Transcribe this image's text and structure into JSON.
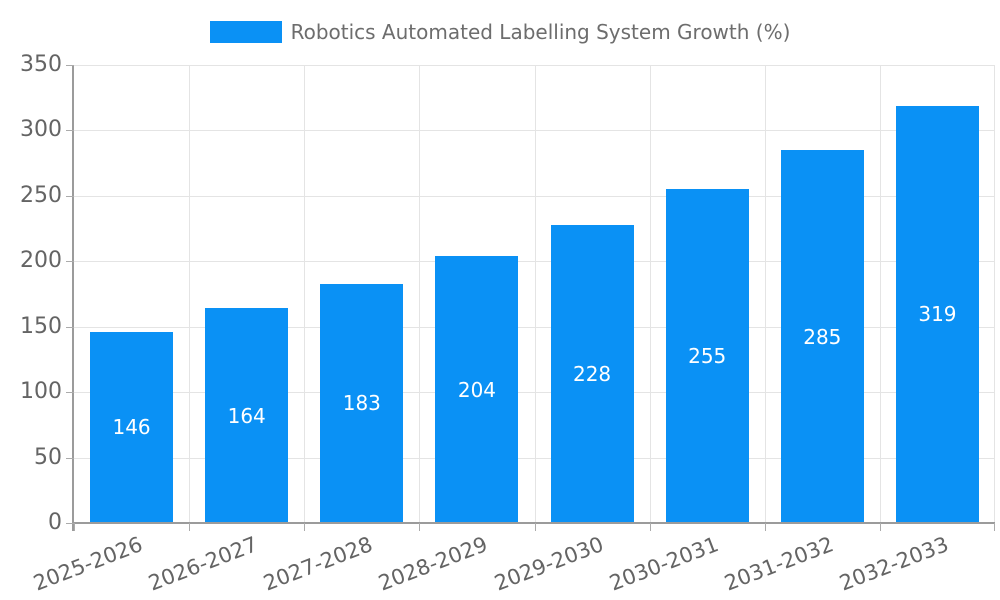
{
  "chart_data": {
    "type": "bar",
    "title": "Robotics Automated Labelling System Growth (%)",
    "categories": [
      "2025-2026",
      "2026-2027",
      "2027-2028",
      "2028-2029",
      "2029-2030",
      "2030-2031",
      "2031-2032",
      "2032-2033"
    ],
    "values": [
      146,
      164,
      183,
      204,
      228,
      255,
      285,
      319
    ],
    "xlabel": "",
    "ylabel": "",
    "ylim": [
      0,
      350
    ],
    "yticks": [
      0,
      50,
      100,
      150,
      200,
      250,
      300,
      350
    ],
    "grid": "both",
    "legend_position": "top",
    "value_labels": "inside-center"
  },
  "colors": {
    "bar": "#0a91f5",
    "grid": "#e4e4e4",
    "axis": "#9b9b9b",
    "tick": "#ababab",
    "axis_label": "#646464",
    "value_label": "#ffffff",
    "legend_text": "#6d6d6d",
    "background": "#ffffff"
  }
}
